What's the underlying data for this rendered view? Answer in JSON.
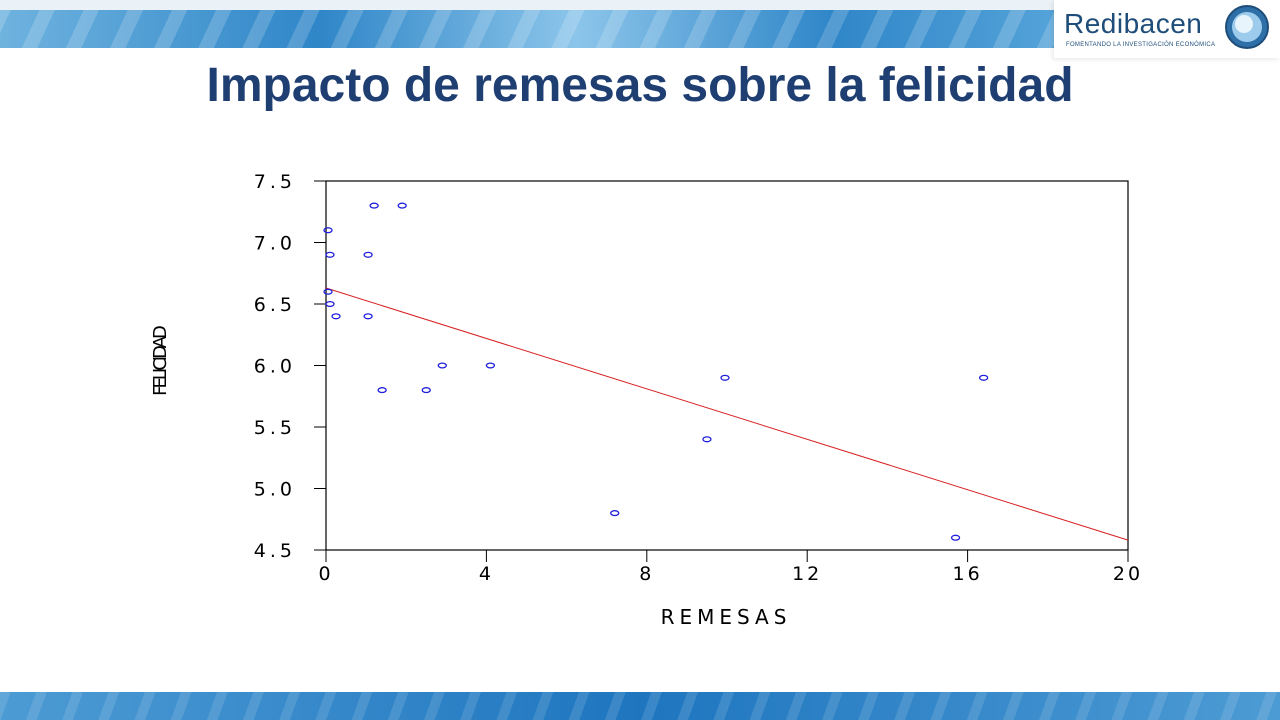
{
  "slide": {
    "title": "Impacto de remesas sobre la felicidad",
    "logo": {
      "name": "Redibacen",
      "tagline": "FOMENTANDO LA INVESTIGACIÓN ECONÓMICA"
    }
  },
  "colors": {
    "title": "#1f3f73",
    "points": "#1d1ddb",
    "fit_line": "#d62020",
    "banner": "#2f86c8"
  },
  "chart_data": {
    "type": "scatter",
    "title": "",
    "xlabel": "REMESAS",
    "ylabel": "FELICIDAD",
    "xlim": [
      0,
      20
    ],
    "ylim": [
      4.5,
      7.5
    ],
    "xticks": [
      "0",
      "4",
      "8",
      "12",
      "16",
      "20"
    ],
    "yticks": [
      "4.5",
      "5.0",
      "5.5",
      "6.0",
      "6.5",
      "7.0",
      "7.5"
    ],
    "grid": false,
    "legend": "none",
    "points": [
      {
        "x": 0.05,
        "y": 7.1
      },
      {
        "x": 0.1,
        "y": 6.9
      },
      {
        "x": 0.05,
        "y": 6.6
      },
      {
        "x": 0.1,
        "y": 6.5
      },
      {
        "x": 0.25,
        "y": 6.4
      },
      {
        "x": 1.05,
        "y": 6.9
      },
      {
        "x": 1.05,
        "y": 6.4
      },
      {
        "x": 1.2,
        "y": 7.3
      },
      {
        "x": 1.9,
        "y": 7.3
      },
      {
        "x": 1.4,
        "y": 5.8
      },
      {
        "x": 2.5,
        "y": 5.8
      },
      {
        "x": 2.9,
        "y": 6.0
      },
      {
        "x": 4.1,
        "y": 6.0
      },
      {
        "x": 7.2,
        "y": 4.8
      },
      {
        "x": 9.5,
        "y": 5.4
      },
      {
        "x": 9.95,
        "y": 5.9
      },
      {
        "x": 15.7,
        "y": 4.6
      },
      {
        "x": 16.4,
        "y": 5.9
      }
    ],
    "fit_line": {
      "x": [
        0,
        20
      ],
      "y": [
        6.63,
        4.58
      ]
    }
  }
}
